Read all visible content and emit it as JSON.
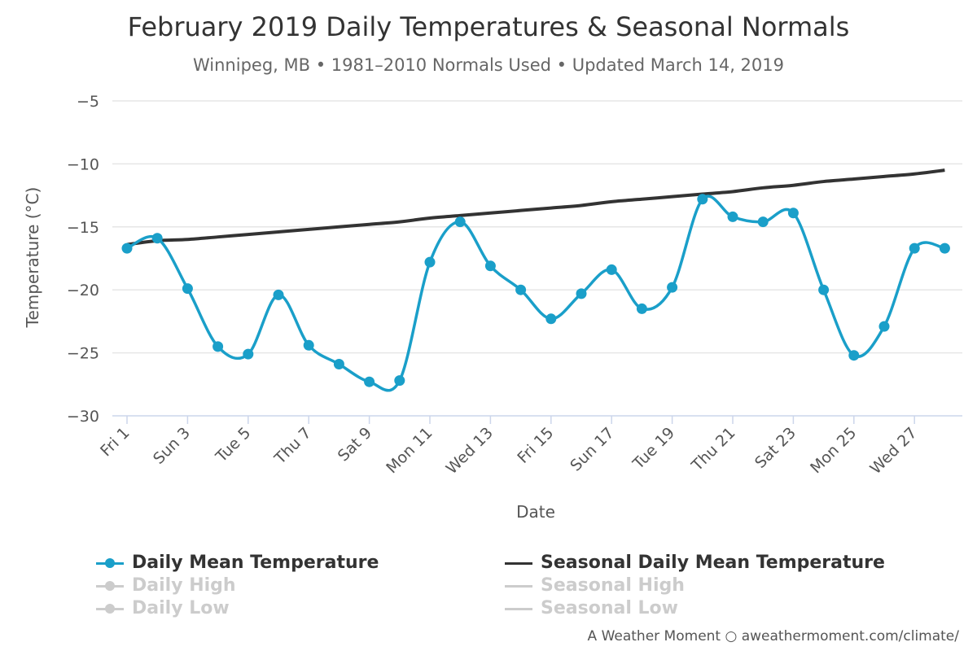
{
  "chart_data": {
    "type": "line",
    "title": "February 2019 Daily Temperatures & Seasonal Normals",
    "subtitle": "Winnipeg, MB • 1981–2010 Normals Used • Updated March 14, 2019",
    "xlabel": "Date",
    "ylabel": "Temperature (°C)",
    "ylim": [
      -30,
      -5
    ],
    "yticks": [
      -5,
      -10,
      -15,
      -20,
      -25,
      -30
    ],
    "xticks": [
      {
        "day": 1,
        "label": "Fri 1"
      },
      {
        "day": 3,
        "label": "Sun 3"
      },
      {
        "day": 5,
        "label": "Tue 5"
      },
      {
        "day": 7,
        "label": "Thu 7"
      },
      {
        "day": 9,
        "label": "Sat 9"
      },
      {
        "day": 11,
        "label": "Mon 11"
      },
      {
        "day": 13,
        "label": "Wed 13"
      },
      {
        "day": 15,
        "label": "Fri 15"
      },
      {
        "day": 17,
        "label": "Sun 17"
      },
      {
        "day": 19,
        "label": "Tue 19"
      },
      {
        "day": 21,
        "label": "Thu 21"
      },
      {
        "day": 23,
        "label": "Sat 23"
      },
      {
        "day": 25,
        "label": "Mon 25"
      },
      {
        "day": 27,
        "label": "Wed 27"
      }
    ],
    "x": [
      1,
      2,
      3,
      4,
      5,
      6,
      7,
      8,
      9,
      10,
      11,
      12,
      13,
      14,
      15,
      16,
      17,
      18,
      19,
      20,
      21,
      22,
      23,
      24,
      25,
      26,
      27,
      28
    ],
    "series": [
      {
        "name": "Daily Mean Temperature",
        "color": "#1a9fc9",
        "values": [
          -16.7,
          -15.9,
          -19.9,
          -24.5,
          -25.1,
          -20.4,
          -24.4,
          -25.9,
          -27.3,
          -27.2,
          -17.8,
          -14.6,
          -18.1,
          -20.0,
          -22.3,
          -20.3,
          -18.4,
          -21.5,
          -19.8,
          -12.8,
          -14.2,
          -14.6,
          -13.9,
          -20.0,
          -25.2,
          -22.9,
          -16.7,
          -16.7
        ]
      },
      {
        "name": "Seasonal Daily Mean Temperature",
        "color": "#333333",
        "values": [
          -16.4,
          -16.1,
          -16.0,
          -15.8,
          -15.6,
          -15.4,
          -15.2,
          -15.0,
          -14.8,
          -14.6,
          -14.3,
          -14.1,
          -13.9,
          -13.7,
          -13.5,
          -13.3,
          -13.0,
          -12.8,
          -12.6,
          -12.4,
          -12.2,
          -11.9,
          -11.7,
          -11.4,
          -11.2,
          -11.0,
          -10.8,
          -10.5
        ]
      }
    ],
    "legend": {
      "placement": "bottom",
      "items": [
        {
          "label": "Daily Mean Temperature",
          "symbol": "line-dot",
          "color": "#1a9fc9",
          "visible": true
        },
        {
          "label": "Seasonal Daily Mean Temperature",
          "symbol": "line",
          "color": "#333333",
          "visible": true
        },
        {
          "label": "Daily High",
          "symbol": "line-dot",
          "color": "#cccccc",
          "visible": false
        },
        {
          "label": "Seasonal High",
          "symbol": "line",
          "color": "#cccccc",
          "visible": false
        },
        {
          "label": "Daily Low",
          "symbol": "line-dot",
          "color": "#cccccc",
          "visible": false
        },
        {
          "label": "Seasonal Low",
          "symbol": "line",
          "color": "#cccccc",
          "visible": false
        }
      ]
    },
    "grid": true
  },
  "credits": "A Weather Moment ○ aweathermoment.com/climate/"
}
